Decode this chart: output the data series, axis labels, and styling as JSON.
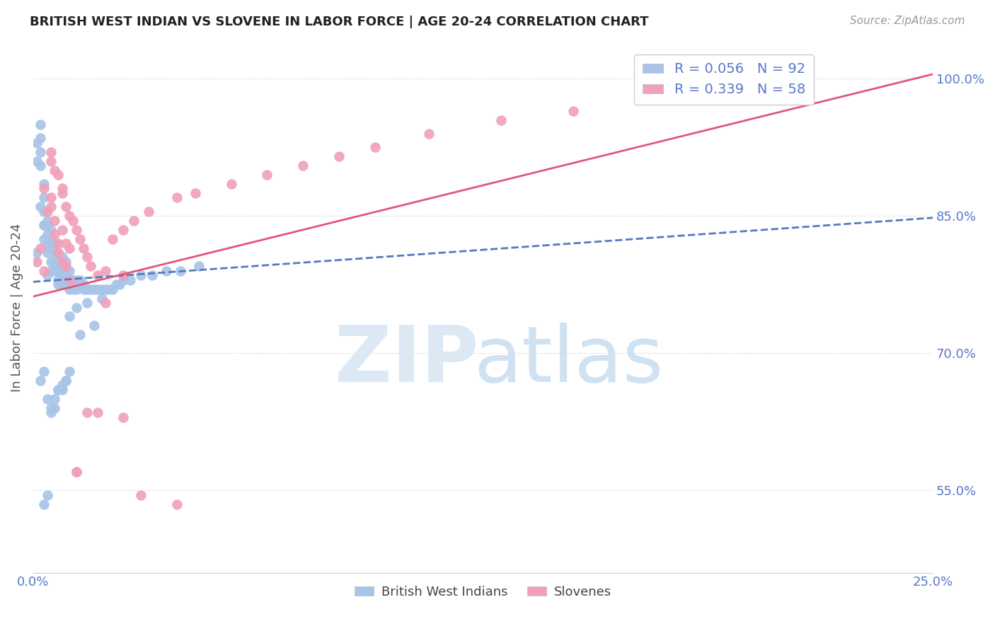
{
  "title": "BRITISH WEST INDIAN VS SLOVENE IN LABOR FORCE | AGE 20-24 CORRELATION CHART",
  "source_text": "Source: ZipAtlas.com",
  "ylabel": "In Labor Force | Age 20-24",
  "xlim": [
    0.0,
    0.25
  ],
  "ylim": [
    0.46,
    1.04
  ],
  "yticks": [
    0.55,
    0.7,
    0.85,
    1.0
  ],
  "ytick_labels": [
    "55.0%",
    "70.0%",
    "85.0%",
    "100.0%"
  ],
  "xticks": [
    0.0,
    0.05,
    0.1,
    0.15,
    0.2,
    0.25
  ],
  "xtick_labels": [
    "0.0%",
    "",
    "",
    "",
    "",
    "25.0%"
  ],
  "blue_color": "#a8c4e8",
  "pink_color": "#f0a0b8",
  "blue_line_color": "#5878c0",
  "pink_line_color": "#e05878",
  "tick_color": "#5878c8",
  "watermark_zip_color": "#dce8f4",
  "watermark_atlas_color": "#c8ddf0",
  "legend_r_blue": "0.056",
  "legend_n_blue": "92",
  "legend_r_pink": "0.339",
  "legend_n_pink": "58",
  "blue_trend_x": [
    0.0,
    0.25
  ],
  "blue_trend_y": [
    0.778,
    0.848
  ],
  "pink_trend_x": [
    0.0,
    0.25
  ],
  "pink_trend_y": [
    0.762,
    1.005
  ],
  "blue_scatter_x": [
    0.001,
    0.001,
    0.001,
    0.002,
    0.002,
    0.002,
    0.002,
    0.002,
    0.003,
    0.003,
    0.003,
    0.003,
    0.003,
    0.004,
    0.004,
    0.004,
    0.004,
    0.004,
    0.005,
    0.005,
    0.005,
    0.005,
    0.005,
    0.006,
    0.006,
    0.006,
    0.006,
    0.007,
    0.007,
    0.007,
    0.007,
    0.007,
    0.008,
    0.008,
    0.008,
    0.008,
    0.009,
    0.009,
    0.009,
    0.009,
    0.01,
    0.01,
    0.01,
    0.011,
    0.011,
    0.012,
    0.012,
    0.013,
    0.013,
    0.014,
    0.014,
    0.015,
    0.016,
    0.017,
    0.018,
    0.019,
    0.02,
    0.021,
    0.022,
    0.023,
    0.024,
    0.025,
    0.027,
    0.03,
    0.033,
    0.037,
    0.041,
    0.046,
    0.002,
    0.003,
    0.004,
    0.005,
    0.006,
    0.007,
    0.008,
    0.009,
    0.01,
    0.012,
    0.015,
    0.019,
    0.003,
    0.004,
    0.005,
    0.006,
    0.007,
    0.008,
    0.009,
    0.01,
    0.013,
    0.017,
    0.003,
    0.004
  ],
  "blue_scatter_y": [
    0.81,
    0.91,
    0.93,
    0.905,
    0.92,
    0.935,
    0.95,
    0.86,
    0.825,
    0.84,
    0.855,
    0.87,
    0.885,
    0.81,
    0.82,
    0.83,
    0.84,
    0.785,
    0.79,
    0.8,
    0.815,
    0.825,
    0.835,
    0.79,
    0.8,
    0.81,
    0.82,
    0.775,
    0.78,
    0.79,
    0.8,
    0.81,
    0.775,
    0.785,
    0.795,
    0.805,
    0.775,
    0.78,
    0.79,
    0.8,
    0.77,
    0.78,
    0.79,
    0.77,
    0.78,
    0.77,
    0.78,
    0.775,
    0.78,
    0.77,
    0.775,
    0.77,
    0.77,
    0.77,
    0.77,
    0.77,
    0.77,
    0.77,
    0.77,
    0.775,
    0.775,
    0.78,
    0.78,
    0.785,
    0.785,
    0.79,
    0.79,
    0.795,
    0.67,
    0.68,
    0.65,
    0.64,
    0.65,
    0.66,
    0.66,
    0.67,
    0.74,
    0.75,
    0.755,
    0.76,
    0.84,
    0.845,
    0.635,
    0.64,
    0.66,
    0.665,
    0.67,
    0.68,
    0.72,
    0.73,
    0.535,
    0.545
  ],
  "pink_scatter_x": [
    0.001,
    0.002,
    0.003,
    0.003,
    0.004,
    0.005,
    0.005,
    0.006,
    0.006,
    0.007,
    0.007,
    0.008,
    0.008,
    0.009,
    0.009,
    0.01,
    0.01,
    0.011,
    0.012,
    0.013,
    0.014,
    0.015,
    0.016,
    0.018,
    0.02,
    0.022,
    0.025,
    0.028,
    0.032,
    0.04,
    0.045,
    0.055,
    0.065,
    0.075,
    0.085,
    0.095,
    0.11,
    0.13,
    0.15,
    0.2,
    0.215,
    0.005,
    0.006,
    0.007,
    0.008,
    0.009,
    0.01,
    0.012,
    0.015,
    0.02,
    0.025,
    0.03,
    0.04,
    0.005,
    0.008,
    0.012,
    0.018,
    0.025
  ],
  "pink_scatter_y": [
    0.8,
    0.815,
    0.79,
    0.88,
    0.855,
    0.87,
    0.86,
    0.845,
    0.83,
    0.82,
    0.81,
    0.8,
    0.835,
    0.82,
    0.795,
    0.78,
    0.815,
    0.845,
    0.835,
    0.825,
    0.815,
    0.805,
    0.795,
    0.785,
    0.79,
    0.825,
    0.835,
    0.845,
    0.855,
    0.87,
    0.875,
    0.885,
    0.895,
    0.905,
    0.915,
    0.925,
    0.94,
    0.955,
    0.965,
    0.99,
    0.99,
    0.91,
    0.9,
    0.895,
    0.875,
    0.86,
    0.85,
    0.57,
    0.635,
    0.755,
    0.785,
    0.545,
    0.535,
    0.92,
    0.88,
    0.57,
    0.635,
    0.63
  ]
}
